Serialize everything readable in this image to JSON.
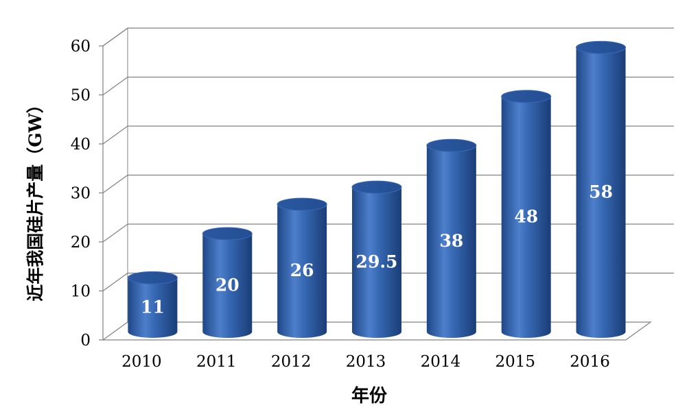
{
  "chart_data": {
    "type": "bar",
    "style": "3d-cylinder",
    "title": "",
    "xlabel": "年份",
    "ylabel": "近年我国硅片产量（GW）",
    "categories": [
      "2010",
      "2011",
      "2012",
      "2013",
      "2014",
      "2015",
      "2016"
    ],
    "values": [
      11,
      20,
      26,
      29.5,
      38,
      48,
      58
    ],
    "data_labels": [
      "11",
      "20",
      "26",
      "29.5",
      "38",
      "48",
      "58"
    ],
    "ylim": [
      0,
      60
    ],
    "yticks": [
      0,
      10,
      20,
      30,
      40,
      50,
      60
    ],
    "grid": true,
    "legend": "none",
    "colors": {
      "bar": "#2f5fa8",
      "bar_highlight": "#6f9bd9",
      "bar_shadow": "#1c3f7a",
      "gridline": "#808080",
      "text": "#000000",
      "data_label": "#ffffff"
    }
  }
}
